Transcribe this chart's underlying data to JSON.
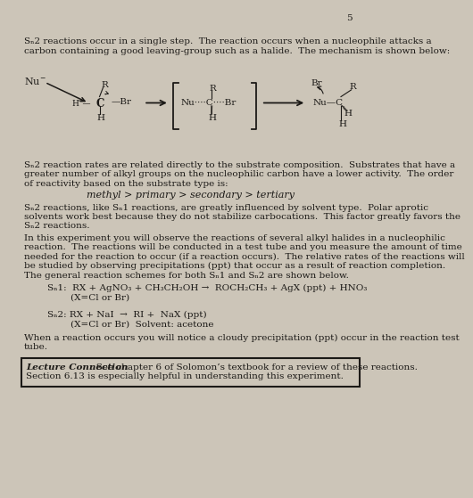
{
  "bg_color": "#ccc5b8",
  "page_num": "5",
  "para0_lines": [
    "Sₙ2 reactions occur in a single step.  The reaction occurs when a nucleophile attacks a",
    "carbon containing a good leaving-group such as a halide.  The mechanism is shown below:"
  ],
  "para1_lines": [
    "Sₙ2 reaction rates are related directly to the substrate composition.  Substrates that have a",
    "greater number of alkyl groups on the nucleophilic carbon have a lower activity.  The order",
    "of reactivity based on the substrate type is:"
  ],
  "reactivity_line": "methyl > primary > secondary > tertiary",
  "para2_lines": [
    "Sₙ2 reactions, like Sₙ1 reactions, are greatly influenced by solvent type.  Polar aprotic",
    "solvents work best because they do not stabilize carbocations.  This factor greatly favors the",
    "Sₙ2 reactions."
  ],
  "para3_lines": [
    "In this experiment you will observe the reactions of several alkyl halides in a nucleophilic",
    "reaction.  The reactions will be conducted in a test tube and you measure the amount of time",
    "needed for the reaction to occur (if a reaction occurs).  The relative rates of the reactions will",
    "be studied by observing precipitations (ppt) that occur as a result of reaction completion.",
    "The general reaction schemes for both Sₙ1 and Sₙ2 are shown below."
  ],
  "sn1_line1": "Sₙ1:  RX + AgNO₃ + CH₃CH₂OH →  ROCH₂CH₃ + AgX (ppt) + HNO₃",
  "sn1_line2": "        (X=Cl or Br)",
  "sn2_line1": "Sₙ2: RX + NaI  →  RI +  NaX (ppt)",
  "sn2_line2": "        (X=Cl or Br)  Solvent: acetone",
  "closing_line1": "When a reaction occurs you will notice a cloudy precipitation (ppt) occur in the reaction test",
  "closing_line2": "tube.",
  "lecture_bold": "Lecture Connection",
  "lecture_text": ": See chapter 6 of Solomon’s textbook for a review of these reactions.",
  "lecture_line2": "Section 6.13 is especially helpful in understanding this experiment.",
  "fs": 7.5,
  "lh": 0.03,
  "tc": "#1c1a17"
}
